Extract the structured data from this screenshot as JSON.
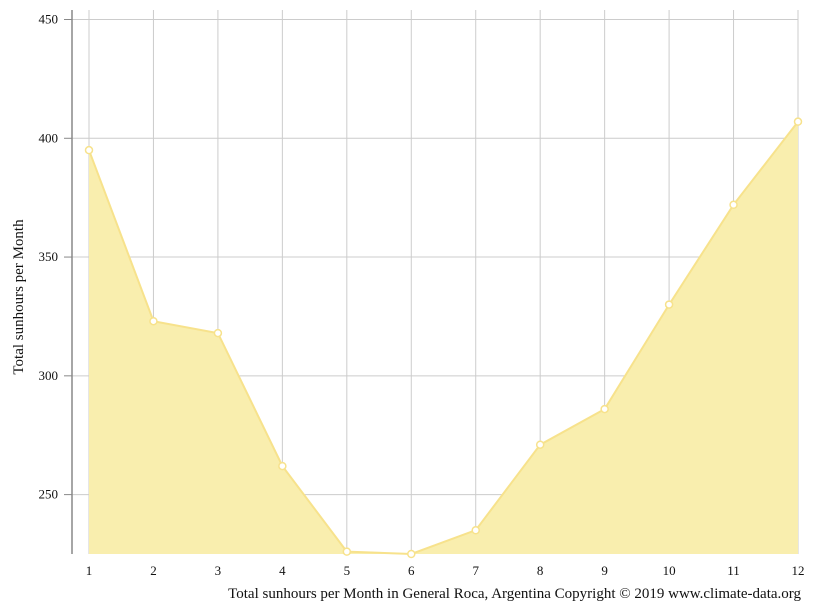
{
  "chart_data": {
    "type": "area",
    "x": [
      1,
      2,
      3,
      4,
      5,
      6,
      7,
      8,
      9,
      10,
      11,
      12
    ],
    "series": [
      {
        "values": [
          395,
          323,
          318,
          262,
          226,
          225,
          235,
          271,
          286,
          330,
          372,
          407
        ]
      }
    ],
    "xlabel": "Total sunhours per Month in General Roca, Argentina Copyright © 2019 www.climate-data.org",
    "ylabel": "Total sunhours per Month",
    "xlim": [
      1,
      12
    ],
    "ylim": [
      225,
      454
    ],
    "y_ticks": [
      250,
      300,
      350,
      400,
      450
    ],
    "x_ticks": [
      1,
      2,
      3,
      4,
      5,
      6,
      7,
      8,
      9,
      10,
      11,
      12
    ],
    "grid": true,
    "colors": {
      "fill": "#f9eeae",
      "line": "#f7e28c",
      "marker_fill": "#ffffff",
      "grid": "#cccccc",
      "axis": "#888888"
    }
  }
}
